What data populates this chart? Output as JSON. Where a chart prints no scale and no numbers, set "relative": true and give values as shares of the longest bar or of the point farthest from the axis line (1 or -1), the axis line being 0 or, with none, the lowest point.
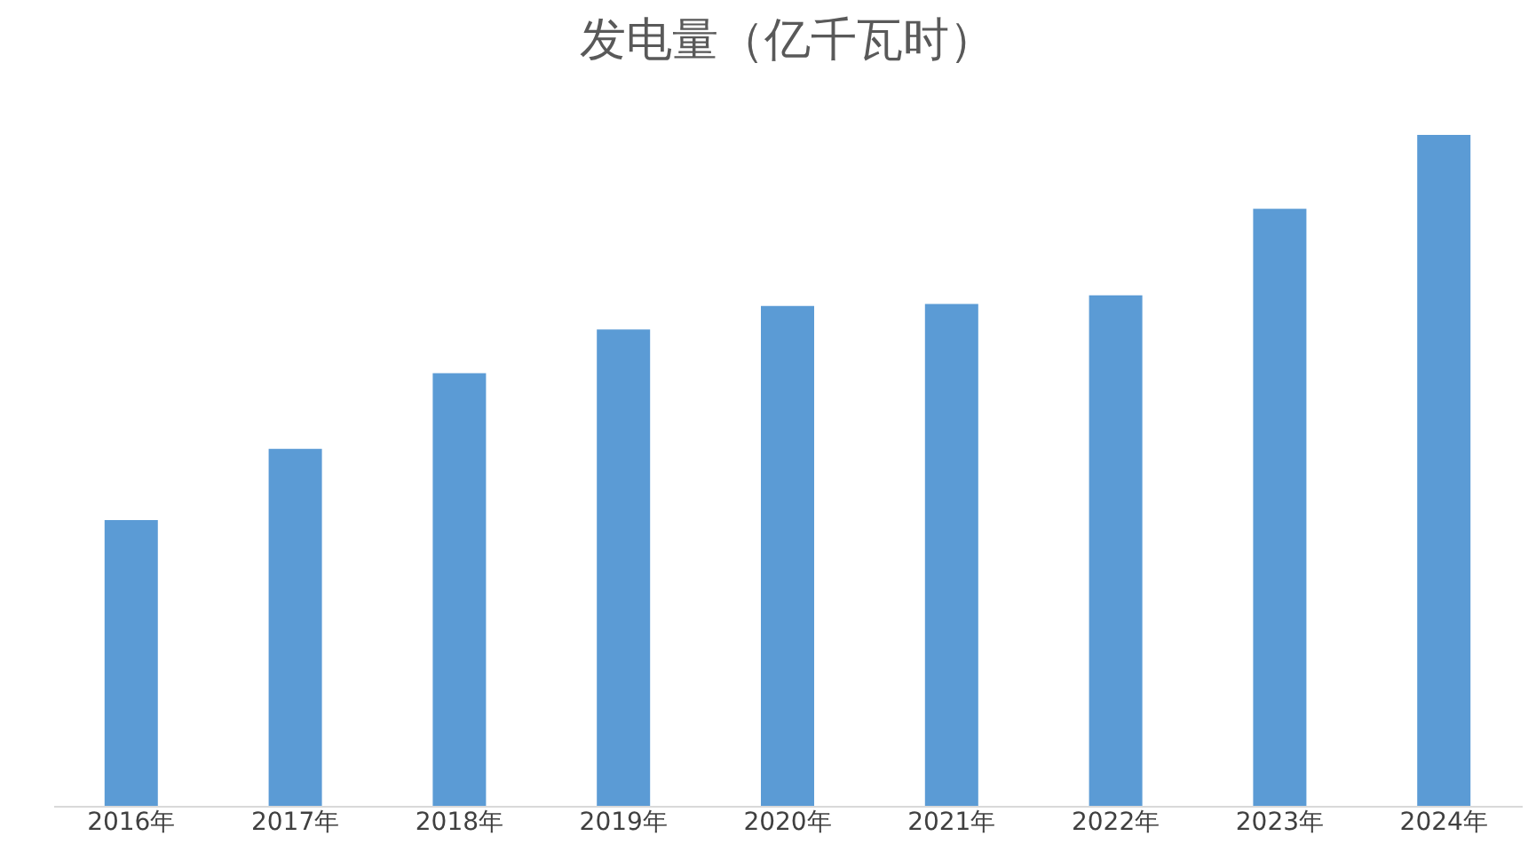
{
  "chart_data": {
    "type": "bar",
    "title": "发电量（亿千瓦时）",
    "relative": true,
    "categories": [
      "2016年",
      "2017年",
      "2018年",
      "2019年",
      "2020年",
      "2021年",
      "2022年",
      "2023年",
      "2024年"
    ],
    "values": [
      0.426,
      0.532,
      0.645,
      0.71,
      0.745,
      0.748,
      0.761,
      0.89,
      1
    ],
    "color": "#5b9bd5",
    "grid": false
  }
}
